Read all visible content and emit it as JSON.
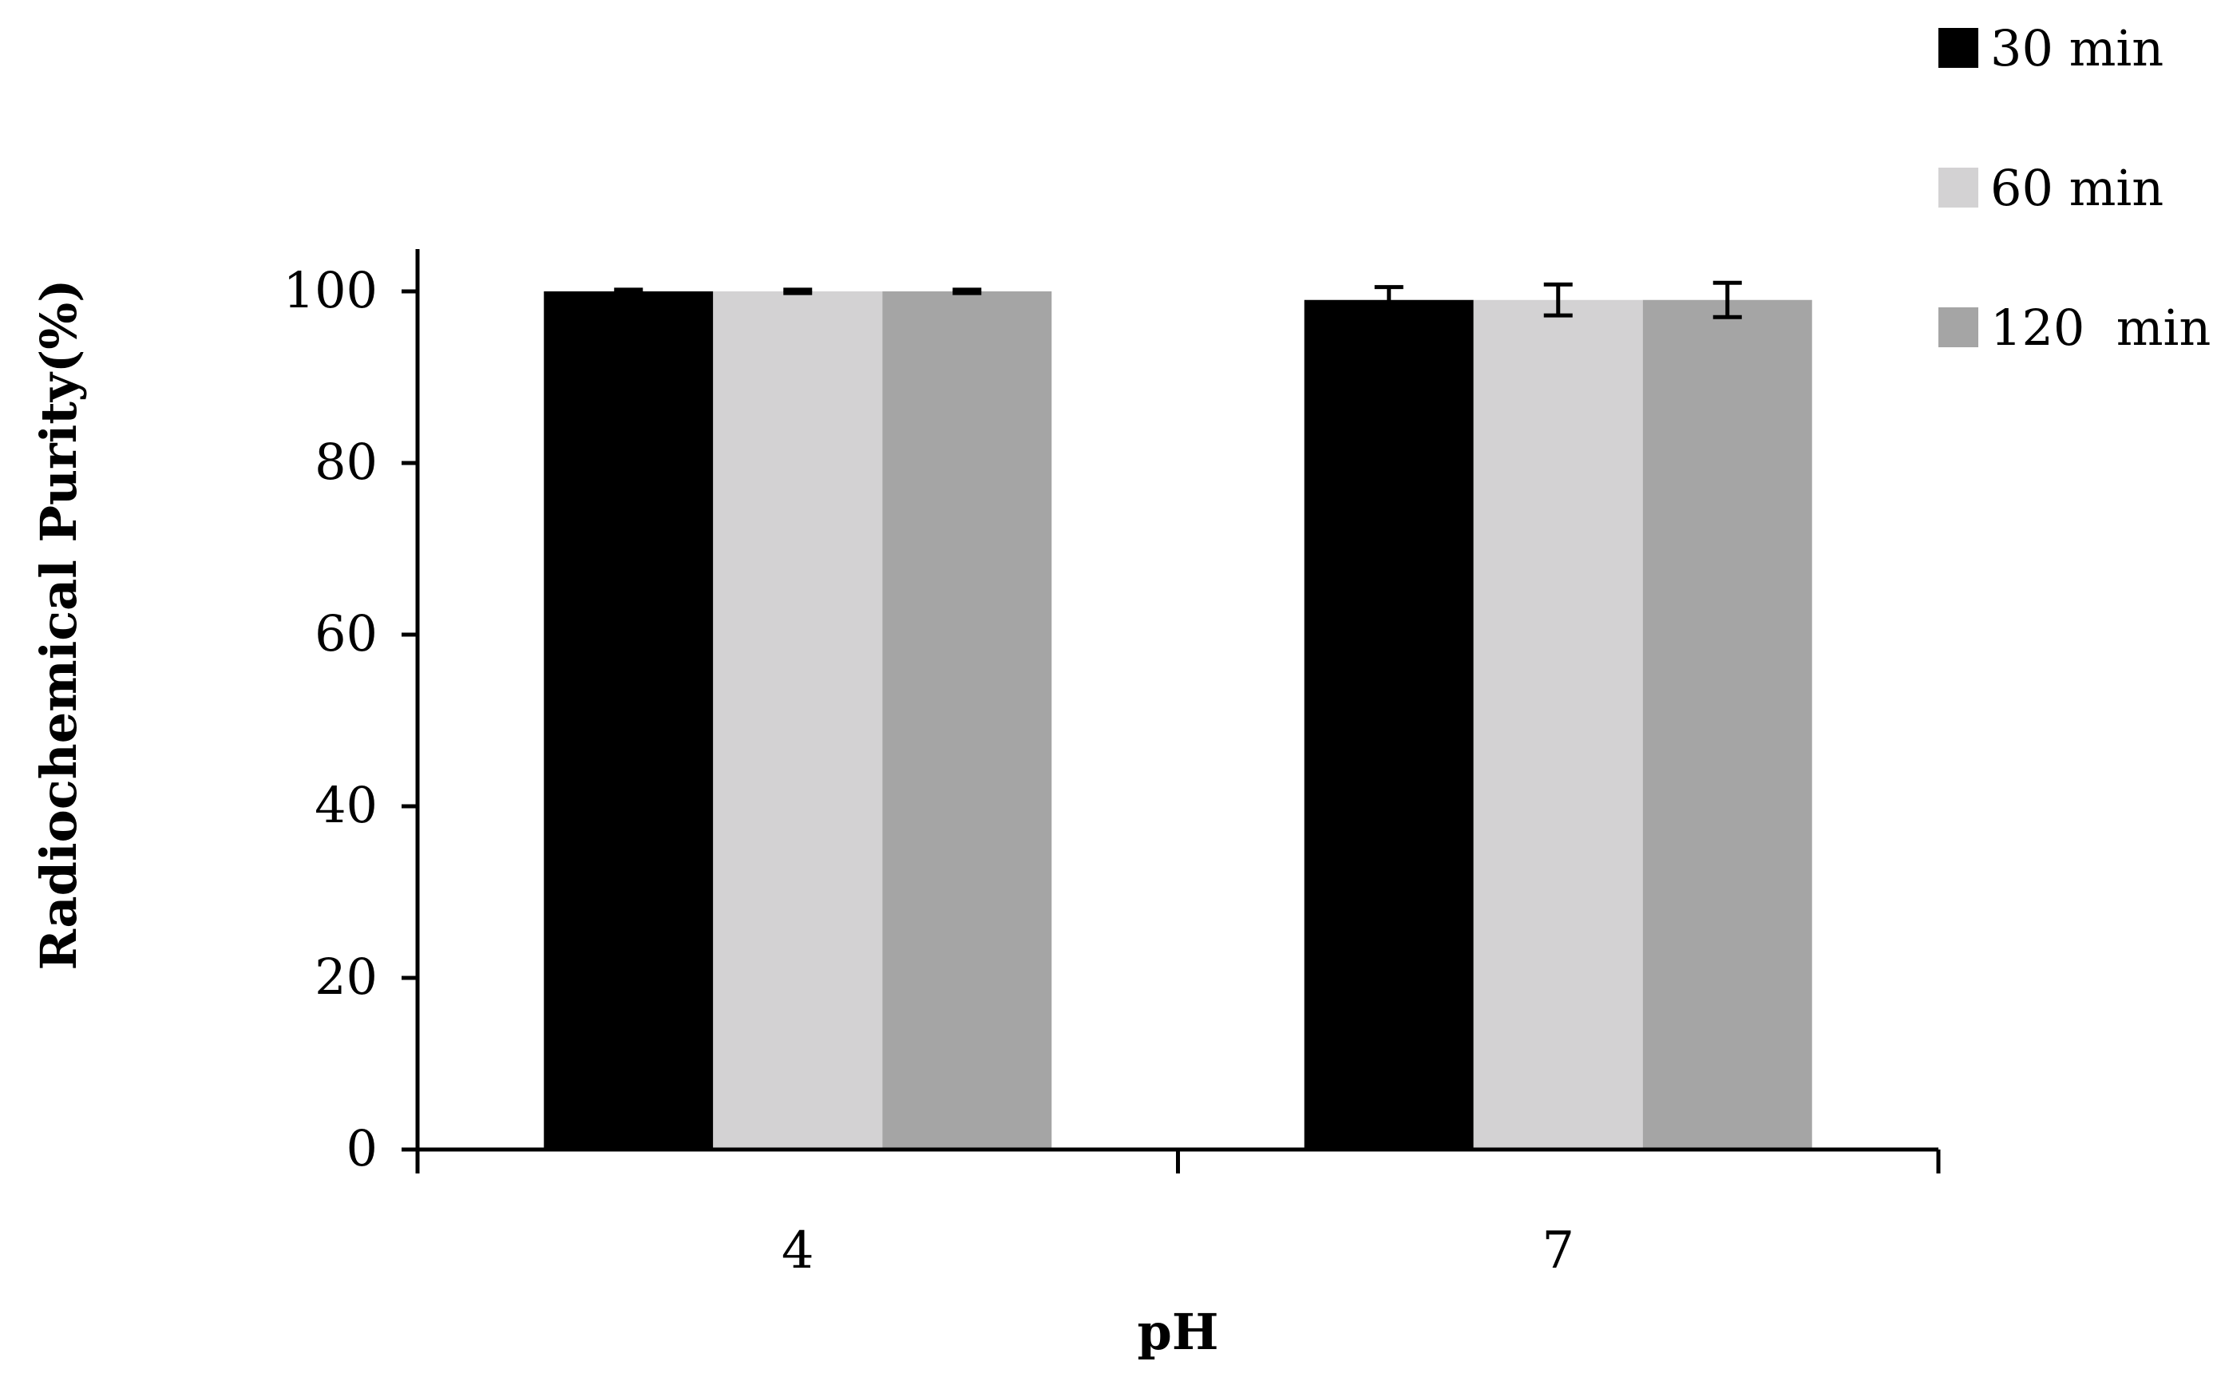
{
  "chart_data": {
    "type": "bar",
    "xlabel": "pH",
    "ylabel": "Radiochemical Purity(%)",
    "categories": [
      "4",
      "7"
    ],
    "ylim": [
      0,
      100
    ],
    "yticks": [
      "0",
      "20",
      "40",
      "60",
      "80",
      "100"
    ],
    "grid": false,
    "legend_position": "top-right",
    "series": [
      {
        "name": "30 min",
        "values": [
          100,
          99
        ],
        "error": [
          0.2,
          1.5
        ],
        "color": "#000000"
      },
      {
        "name": "60 min",
        "values": [
          100,
          99
        ],
        "error": [
          0.2,
          1.8
        ],
        "color": "#d3d2d3"
      },
      {
        "name": "120  min",
        "values": [
          100,
          99
        ],
        "error": [
          0.2,
          2.0
        ],
        "color": "#a5a5a5"
      }
    ]
  }
}
